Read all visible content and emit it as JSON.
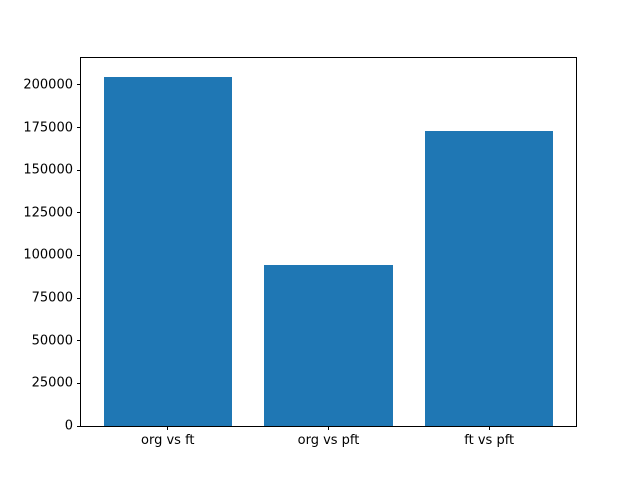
{
  "chart_data": {
    "type": "bar",
    "categories": [
      "org vs ft",
      "org vs pft",
      "ft vs pft"
    ],
    "values": [
      204600,
      94700,
      173000
    ],
    "title": "",
    "xlabel": "",
    "ylabel": "",
    "ylim": [
      0,
      215800
    ],
    "yticks": [
      0,
      25000,
      50000,
      75000,
      100000,
      125000,
      150000,
      175000,
      200000
    ],
    "bar_color": "#1f77b4",
    "axis_color": "#000000",
    "background_color": "#ffffff",
    "grid": false,
    "legend": null
  }
}
